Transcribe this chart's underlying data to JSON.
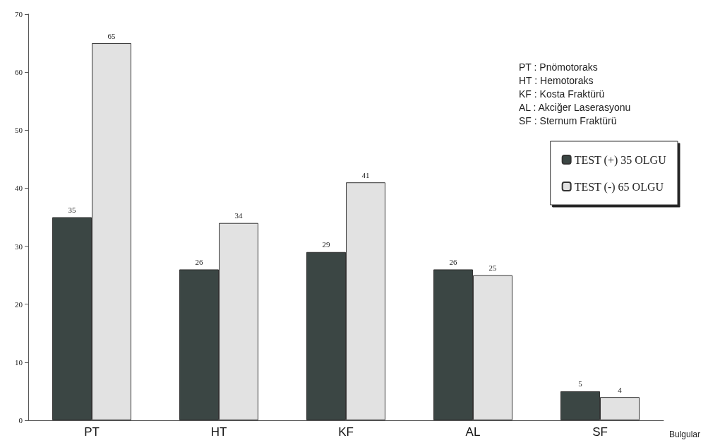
{
  "chart_data": {
    "type": "bar",
    "xlabel": "Bulgular",
    "categories": [
      "PT",
      "HT",
      "KF",
      "AL",
      "SF"
    ],
    "series": [
      {
        "name": "TEST (+) 35 OLGU",
        "color": "#3b4644",
        "values": [
          35,
          26,
          29,
          26,
          5
        ]
      },
      {
        "name": "TEST (-) 65 OLGU",
        "color": "#e2e2e2",
        "values": [
          65,
          34,
          41,
          25,
          4
        ]
      }
    ],
    "ylim": [
      0,
      70
    ],
    "yticks": [
      0,
      10,
      20,
      30,
      40,
      50,
      60,
      70
    ],
    "grid": false,
    "legend": "top right",
    "data_labels": true,
    "annotations": [
      "PT : Pnömotoraks",
      "HT : Hemotoraks",
      "KF : Kosta Fraktürü",
      "AL : Akciğer Laserasyonu",
      "SF : Sternum Fraktürü"
    ]
  }
}
